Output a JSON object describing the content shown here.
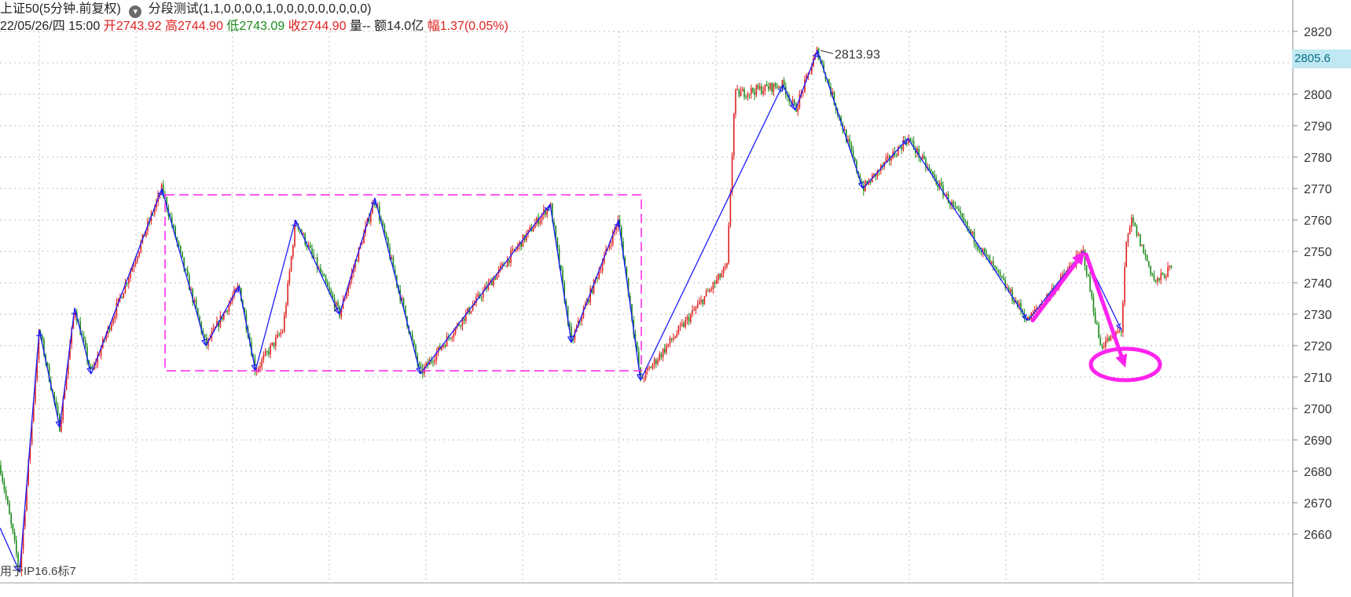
{
  "header": {
    "instrument": "上证50(5分钟.前复权)",
    "indicator": "分段测试(1,1,0,0,0,0,1,0,0,0,0,0,0,0,0,0)",
    "datetime": "22/05/26/四 15:00",
    "open_label": "开",
    "open": "2743.92",
    "high_label": "高",
    "high": "2744.90",
    "low_label": "低",
    "low": "2743.09",
    "close_label": "收",
    "close": "2744.90",
    "volume_label": "量",
    "volume": "--",
    "amount_label": "额",
    "amount": "14.0亿",
    "change_label": "幅",
    "change": "1.37(0.05%)"
  },
  "bottom_note": "用于IP16.6标7",
  "current_price_tag": "2805.6",
  "peak_label": "2813.93",
  "colors": {
    "up": "#e02020",
    "down": "#1a8a1a",
    "zigzag": "#1a1aff",
    "annotation": "#ff22ee",
    "grid": "#bfbfbf",
    "axis_text": "#333333"
  },
  "chart_data": {
    "type": "line",
    "title": "",
    "xlabel": "",
    "ylabel": "",
    "ylim": [
      2648,
      2826
    ],
    "y_ticks": [
      2820,
      2810,
      2800,
      2790,
      2780,
      2770,
      2760,
      2750,
      2740,
      2730,
      2720,
      2710,
      2700,
      2690,
      2680,
      2670,
      2660
    ],
    "grid": true,
    "series": [
      {
        "kind": "zigzag",
        "x": [
          0,
          25,
          50,
          76,
          95,
          116,
          206,
          262,
          304,
          325,
          376,
          432,
          477,
          535,
          700,
          727,
          787,
          815,
          996,
          1012,
          1040,
          1098,
          1155,
          1308,
          1378,
          1427
        ],
        "y": [
          2662,
          2648,
          2725,
          2694,
          2732,
          2711,
          2770,
          2720,
          2739,
          2712,
          2760,
          2730,
          2767,
          2711,
          2765,
          2721,
          2760,
          2709,
          2803,
          2795,
          2813.93,
          2770,
          2786,
          2728,
          2750,
          2725
        ]
      },
      {
        "kind": "candles",
        "anchors_x": [
          0,
          25,
          50,
          76,
          95,
          116,
          206,
          262,
          304,
          325,
          360,
          376,
          432,
          477,
          535,
          700,
          727,
          787,
          815,
          880,
          925,
          935,
          996,
          1012,
          1040,
          1098,
          1155,
          1308,
          1378,
          1400,
          1427,
          1432,
          1440,
          1470,
          1492
        ],
        "anchors_y": [
          2682,
          2648,
          2725,
          2694,
          2732,
          2711,
          2770,
          2720,
          2739,
          2712,
          2725,
          2760,
          2730,
          2767,
          2711,
          2765,
          2721,
          2760,
          2709,
          2730,
          2745,
          2800,
          2803,
          2795,
          2813.93,
          2770,
          2786,
          2728,
          2750,
          2720,
          2725,
          2750,
          2760,
          2740,
          2745
        ]
      }
    ]
  },
  "annotations": {
    "range_box": {
      "x0": 210,
      "x1": 816,
      "y_top": 2768,
      "y_bottom": 2712
    },
    "arrow_up": {
      "x0": 1314,
      "y0": 2728,
      "x1": 1380,
      "y1": 2750
    },
    "arrow_down": {
      "x0": 1382,
      "y0": 2749,
      "x1": 1432,
      "y1": 2713
    },
    "target_ellipse": {
      "cx": 1432,
      "cy": 2714,
      "rx": 44,
      "ry": 20
    }
  }
}
